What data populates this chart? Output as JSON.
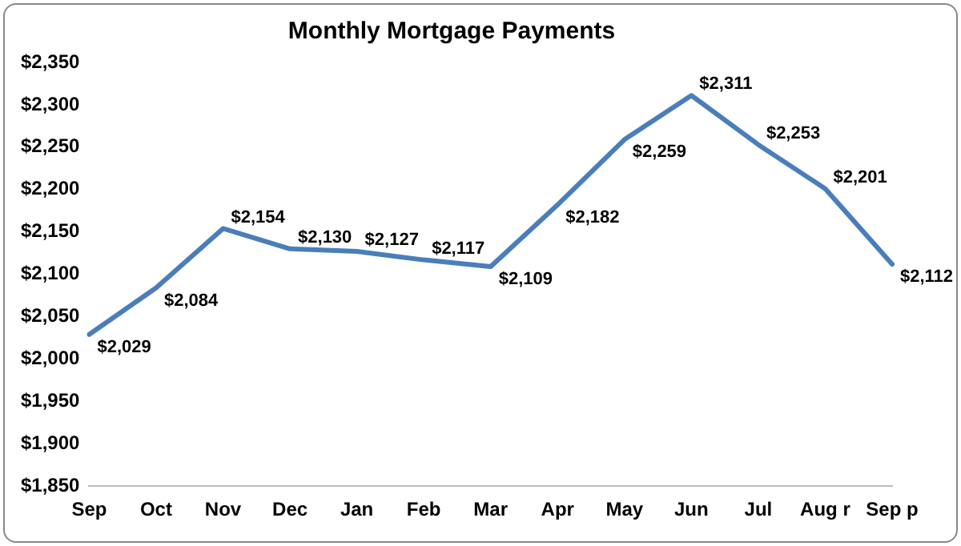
{
  "chart_data": {
    "type": "line",
    "title": "Monthly Mortgage Payments",
    "categories": [
      "Sep",
      "Oct",
      "Nov",
      "Dec",
      "Jan",
      "Feb",
      "Mar",
      "Apr",
      "May",
      "Jun",
      "Jul",
      "Aug r",
      "Sep p"
    ],
    "series": [
      {
        "color": "#4a7ebb",
        "values": [
          2029,
          2084,
          2154,
          2130,
          2127,
          2117,
          2109,
          2182,
          2259,
          2311,
          2253,
          2201,
          2112
        ],
        "value_labels": [
          "$2,029",
          "$2,084",
          "$2,154",
          "$2,130",
          "$2,127",
          "$2,117",
          "$2,109",
          "$2,182",
          "$2,259",
          "$2,311",
          "$2,253",
          "$2,201",
          "$2,112"
        ]
      }
    ],
    "ylim": [
      1850,
      2350
    ],
    "yticks": [
      {
        "value": 1850,
        "label": "$1,850"
      },
      {
        "value": 1900,
        "label": "$1,900"
      },
      {
        "value": 1950,
        "label": "$1,950"
      },
      {
        "value": 2000,
        "label": "$2,000"
      },
      {
        "value": 2050,
        "label": "$2,050"
      },
      {
        "value": 2100,
        "label": "$2,100"
      },
      {
        "value": 2150,
        "label": "$2,150"
      },
      {
        "value": 2200,
        "label": "$2,200"
      },
      {
        "value": 2250,
        "label": "$2,250"
      },
      {
        "value": 2300,
        "label": "$2,300"
      },
      {
        "value": 2350,
        "label": "$2,350"
      }
    ],
    "grid": false,
    "legend": false,
    "marker": "none",
    "line_style": "solid"
  }
}
